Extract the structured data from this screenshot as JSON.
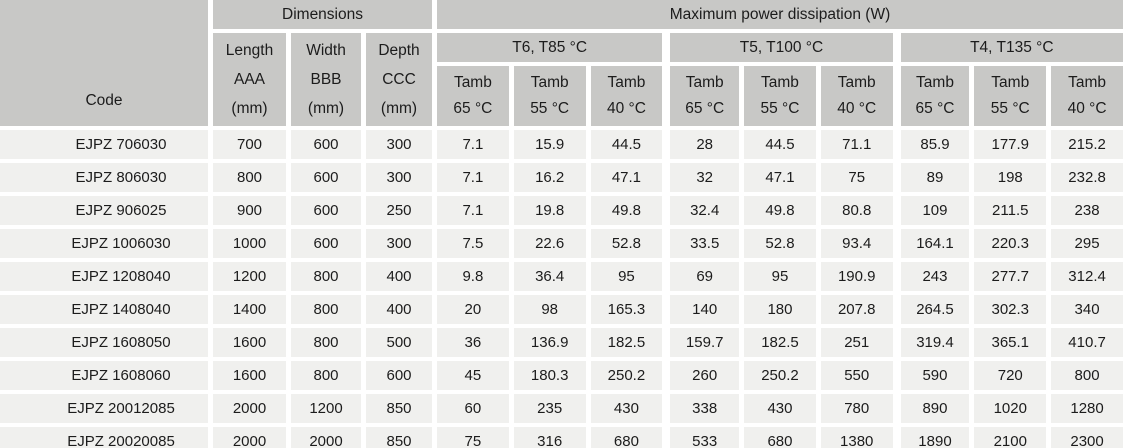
{
  "colors": {
    "header_bg": "#C8C8C6",
    "cell_bg": "#F0F0EE",
    "grid_white": "#FFFFFF",
    "text": "#1C1C1C"
  },
  "table": {
    "header": {
      "code_label": "Code",
      "dimensions_label": "Dimensions",
      "power_label": "Maximum power dissipation (W)",
      "dim_columns": [
        {
          "name": "Length",
          "ref": "AAA",
          "unit": "(mm)"
        },
        {
          "name": "Width",
          "ref": "BBB",
          "unit": "(mm)"
        },
        {
          "name": "Depth",
          "ref": "CCC",
          "unit": "(mm)"
        }
      ],
      "temp_classes": [
        "T6, T85 °C",
        "T5, T100 °C",
        "T4, T135 °C"
      ],
      "tamb_label": "Tamb",
      "tamb_temps": [
        "65 °C",
        "55 °C",
        "40 °C"
      ]
    },
    "rows": [
      {
        "code": "EJPZ 706030",
        "values": [
          "700",
          "600",
          "300",
          "7.1",
          "15.9",
          "44.5",
          "28",
          "44.5",
          "71.1",
          "85.9",
          "177.9",
          "215.2"
        ]
      },
      {
        "code": "EJPZ 806030",
        "values": [
          "800",
          "600",
          "300",
          "7.1",
          "16.2",
          "47.1",
          "32",
          "47.1",
          "75",
          "89",
          "198",
          "232.8"
        ]
      },
      {
        "code": "EJPZ 906025",
        "values": [
          "900",
          "600",
          "250",
          "7.1",
          "19.8",
          "49.8",
          "32.4",
          "49.8",
          "80.8",
          "109",
          "211.5",
          "238"
        ]
      },
      {
        "code": "EJPZ 1006030",
        "values": [
          "1000",
          "600",
          "300",
          "7.5",
          "22.6",
          "52.8",
          "33.5",
          "52.8",
          "93.4",
          "164.1",
          "220.3",
          "295"
        ]
      },
      {
        "code": "EJPZ 1208040",
        "values": [
          "1200",
          "800",
          "400",
          "9.8",
          "36.4",
          "95",
          "69",
          "95",
          "190.9",
          "243",
          "277.7",
          "312.4"
        ]
      },
      {
        "code": "EJPZ 1408040",
        "values": [
          "1400",
          "800",
          "400",
          "20",
          "98",
          "165.3",
          "140",
          "180",
          "207.8",
          "264.5",
          "302.3",
          "340"
        ]
      },
      {
        "code": "EJPZ 1608050",
        "values": [
          "1600",
          "800",
          "500",
          "36",
          "136.9",
          "182.5",
          "159.7",
          "182.5",
          "251",
          "319.4",
          "365.1",
          "410.7"
        ]
      },
      {
        "code": "EJPZ 1608060",
        "values": [
          "1600",
          "800",
          "600",
          "45",
          "180.3",
          "250.2",
          "260",
          "250.2",
          "550",
          "590",
          "720",
          "800"
        ]
      },
      {
        "code": "EJPZ 20012085",
        "values": [
          "2000",
          "1200",
          "850",
          "60",
          "235",
          "430",
          "338",
          "430",
          "780",
          "890",
          "1020",
          "1280"
        ]
      },
      {
        "code": "EJPZ 20020085",
        "values": [
          "2000",
          "2000",
          "850",
          "75",
          "316",
          "680",
          "533",
          "680",
          "1380",
          "1890",
          "2100",
          "2300"
        ]
      }
    ]
  }
}
